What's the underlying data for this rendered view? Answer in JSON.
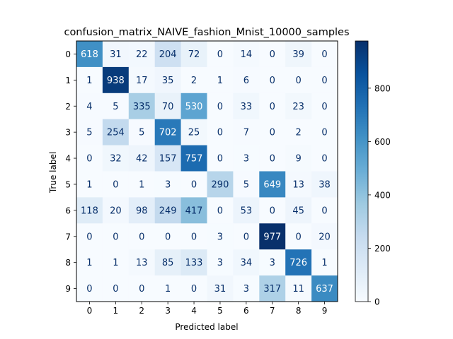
{
  "chart_data": {
    "type": "heatmap",
    "title": "confusion_matrix_NAIVE_fashion_Mnist_10000_samples",
    "xlabel": "Predicted label",
    "ylabel": "True label",
    "x_categories": [
      "0",
      "1",
      "2",
      "3",
      "4",
      "5",
      "6",
      "7",
      "8",
      "9"
    ],
    "y_categories": [
      "0",
      "1",
      "2",
      "3",
      "4",
      "5",
      "6",
      "7",
      "8",
      "9"
    ],
    "matrix": [
      [
        618,
        31,
        22,
        204,
        72,
        0,
        14,
        0,
        39,
        0
      ],
      [
        1,
        938,
        17,
        35,
        2,
        1,
        6,
        0,
        0,
        0
      ],
      [
        4,
        5,
        335,
        70,
        530,
        0,
        33,
        0,
        23,
        0
      ],
      [
        5,
        254,
        5,
        702,
        25,
        0,
        7,
        0,
        2,
        0
      ],
      [
        0,
        32,
        42,
        157,
        757,
        0,
        3,
        0,
        9,
        0
      ],
      [
        1,
        0,
        1,
        3,
        0,
        290,
        5,
        649,
        13,
        38
      ],
      [
        118,
        20,
        98,
        249,
        417,
        0,
        53,
        0,
        45,
        0
      ],
      [
        0,
        0,
        0,
        0,
        0,
        3,
        0,
        977,
        0,
        20
      ],
      [
        1,
        1,
        13,
        85,
        133,
        3,
        34,
        3,
        726,
        1
      ],
      [
        0,
        0,
        0,
        1,
        0,
        31,
        3,
        317,
        11,
        637
      ]
    ],
    "colormap": "Blues",
    "color_range": [
      0,
      977
    ],
    "colorbar_ticks": [
      0,
      200,
      400,
      600,
      800
    ],
    "colorbar_tick_labels": [
      "0",
      "200",
      "400",
      "600",
      "800"
    ]
  }
}
